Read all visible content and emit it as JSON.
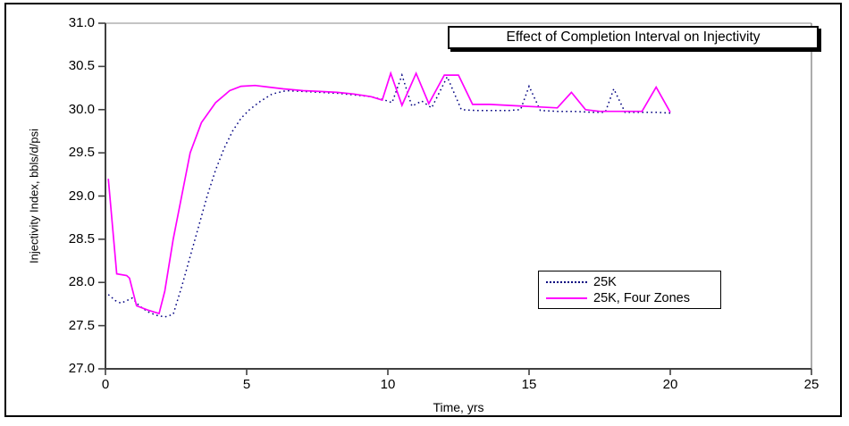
{
  "chart_data": {
    "type": "line",
    "title": "Effect of Completion Interval on Injectivity",
    "xlabel": "Time, yrs",
    "ylabel": "Injectivity Index, bbls/d/psi",
    "xlim": [
      0,
      25
    ],
    "ylim": [
      27.0,
      31.0
    ],
    "xticks": [
      0,
      5,
      10,
      15,
      20,
      25
    ],
    "yticks": [
      31.0,
      30.5,
      30.0,
      29.5,
      29.0,
      28.5,
      28.0,
      27.5,
      27.0
    ],
    "grid": "top-gridline-only",
    "legend_position": "lower-right-inside",
    "axis_color": "#404040",
    "gridline_color": "#a0a0a0",
    "plot_right_border_color": "#808080",
    "series": [
      {
        "name": "25K",
        "color": "#000080",
        "style": "dotted",
        "points": [
          [
            0.1,
            27.86
          ],
          [
            0.35,
            27.79
          ],
          [
            0.55,
            27.76
          ],
          [
            0.75,
            27.79
          ],
          [
            0.95,
            27.82
          ],
          [
            1.2,
            27.73
          ],
          [
            1.5,
            27.66
          ],
          [
            1.8,
            27.62
          ],
          [
            2.1,
            27.6
          ],
          [
            2.4,
            27.63
          ],
          [
            2.7,
            27.95
          ],
          [
            3.0,
            28.3
          ],
          [
            3.3,
            28.65
          ],
          [
            3.6,
            29.0
          ],
          [
            3.9,
            29.3
          ],
          [
            4.2,
            29.55
          ],
          [
            4.5,
            29.75
          ],
          [
            4.8,
            29.9
          ],
          [
            5.1,
            30.0
          ],
          [
            5.5,
            30.1
          ],
          [
            5.9,
            30.18
          ],
          [
            6.4,
            30.22
          ],
          [
            7.0,
            30.21
          ],
          [
            7.6,
            30.2
          ],
          [
            8.2,
            30.19
          ],
          [
            8.8,
            30.17
          ],
          [
            9.4,
            30.15
          ],
          [
            9.9,
            30.11
          ],
          [
            10.15,
            30.08
          ],
          [
            10.5,
            30.4
          ],
          [
            10.85,
            30.04
          ],
          [
            11.2,
            30.1
          ],
          [
            11.55,
            30.02
          ],
          [
            12.1,
            30.38
          ],
          [
            12.6,
            30.0
          ],
          [
            13.1,
            29.99
          ],
          [
            13.7,
            29.99
          ],
          [
            14.3,
            29.99
          ],
          [
            14.7,
            30.0
          ],
          [
            15.0,
            30.27
          ],
          [
            15.4,
            29.99
          ],
          [
            16.0,
            29.98
          ],
          [
            16.6,
            29.98
          ],
          [
            17.2,
            29.97
          ],
          [
            17.7,
            29.97
          ],
          [
            18.0,
            30.24
          ],
          [
            18.4,
            29.97
          ],
          [
            19.0,
            29.97
          ],
          [
            19.5,
            29.97
          ],
          [
            20.0,
            29.96
          ]
        ]
      },
      {
        "name": "25K, Four Zones",
        "color": "#FF00FF",
        "style": "solid",
        "points": [
          [
            0.1,
            29.2
          ],
          [
            0.4,
            28.1
          ],
          [
            0.75,
            28.08
          ],
          [
            0.85,
            28.05
          ],
          [
            1.1,
            27.73
          ],
          [
            1.5,
            27.68
          ],
          [
            1.9,
            27.64
          ],
          [
            2.1,
            27.9
          ],
          [
            2.4,
            28.5
          ],
          [
            2.7,
            29.0
          ],
          [
            3.0,
            29.5
          ],
          [
            3.4,
            29.85
          ],
          [
            3.9,
            30.08
          ],
          [
            4.4,
            30.22
          ],
          [
            4.8,
            30.27
          ],
          [
            5.3,
            30.28
          ],
          [
            5.8,
            30.26
          ],
          [
            6.3,
            30.24
          ],
          [
            7.0,
            30.22
          ],
          [
            7.6,
            30.21
          ],
          [
            8.2,
            30.2
          ],
          [
            8.8,
            30.18
          ],
          [
            9.4,
            30.15
          ],
          [
            9.8,
            30.11
          ],
          [
            10.1,
            30.42
          ],
          [
            10.5,
            30.05
          ],
          [
            11.0,
            30.42
          ],
          [
            11.45,
            30.07
          ],
          [
            12.0,
            30.4
          ],
          [
            12.5,
            30.4
          ],
          [
            13.0,
            30.06
          ],
          [
            13.6,
            30.06
          ],
          [
            14.2,
            30.05
          ],
          [
            14.8,
            30.04
          ],
          [
            15.4,
            30.03
          ],
          [
            16.0,
            30.02
          ],
          [
            16.5,
            30.2
          ],
          [
            17.0,
            30.0
          ],
          [
            17.5,
            29.98
          ],
          [
            18.1,
            29.98
          ],
          [
            18.7,
            29.98
          ],
          [
            19.0,
            29.98
          ],
          [
            19.5,
            30.26
          ],
          [
            20.0,
            29.97
          ]
        ]
      }
    ]
  }
}
